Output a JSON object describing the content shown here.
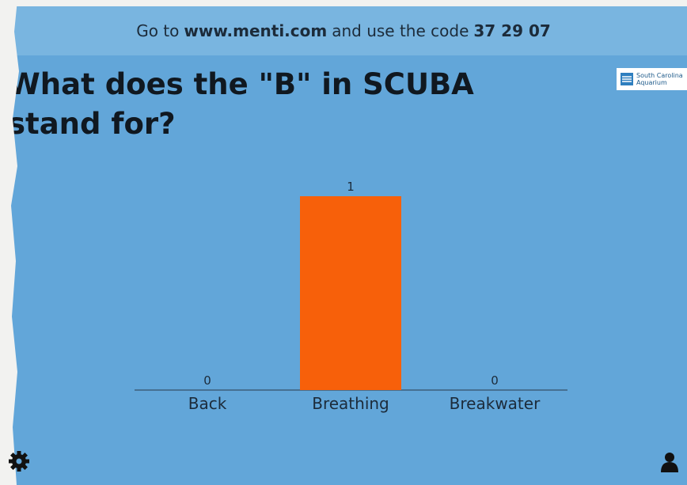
{
  "banner": {
    "prefix": "Go to",
    "site": "www.menti.com",
    "middle": "and use the code",
    "code": "37 29 07"
  },
  "logo": {
    "line1": "South Carolina",
    "line2": "Aquarium"
  },
  "chart_data": {
    "type": "bar",
    "title": "What does the \"B\" in SCUBA stand for?",
    "categories": [
      "Back",
      "Breathing",
      "Breakwater"
    ],
    "values": [
      0,
      1,
      0
    ],
    "color": "#f7600a"
  }
}
